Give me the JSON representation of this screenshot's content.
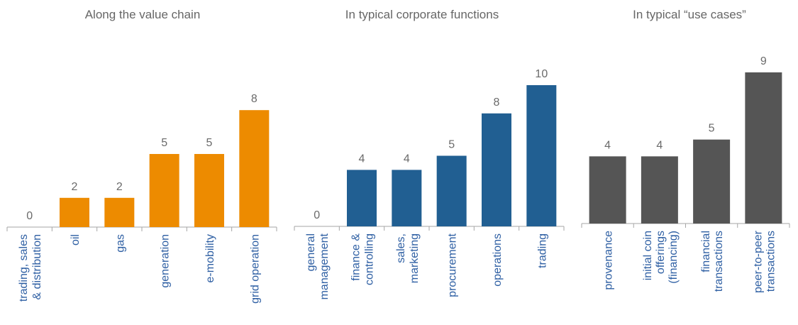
{
  "chart_data": [
    {
      "type": "bar",
      "title": "Along the value chain",
      "categories": [
        [
          "trading, sales",
          "& distribution"
        ],
        [
          "oil"
        ],
        [
          "gas"
        ],
        [
          "generation"
        ],
        [
          "e-mobility"
        ],
        [
          "grid operation"
        ]
      ],
      "values": [
        0,
        2,
        2,
        5,
        5,
        8
      ],
      "color": "#ED8B00",
      "label_color": "#2E5FA3",
      "ylim": [
        0,
        10
      ],
      "grid": false,
      "legend": "none"
    },
    {
      "type": "bar",
      "title": "In typical corporate functions",
      "categories": [
        [
          "general",
          "management"
        ],
        [
          "finance &",
          "controlling"
        ],
        [
          "sales,",
          "marketing"
        ],
        [
          "procurement"
        ],
        [
          "operations"
        ],
        [
          "trading"
        ]
      ],
      "values": [
        0,
        4,
        4,
        5,
        8,
        10
      ],
      "color": "#215F92",
      "label_color": "#2E5FA3",
      "ylim": [
        0,
        10
      ],
      "grid": false,
      "legend": "none"
    },
    {
      "type": "bar",
      "title": "In typical “use cases”",
      "categories": [
        [
          "provenance"
        ],
        [
          "initial coin",
          "offerings",
          "(financing)"
        ],
        [
          "financial",
          "transactions"
        ],
        [
          "peer-to-peer",
          "transactions"
        ]
      ],
      "values": [
        4,
        4,
        5,
        9
      ],
      "color": "#555555",
      "label_color": "#2E5FA3",
      "ylim": [
        0,
        9
      ],
      "grid": false,
      "legend": "none"
    }
  ]
}
